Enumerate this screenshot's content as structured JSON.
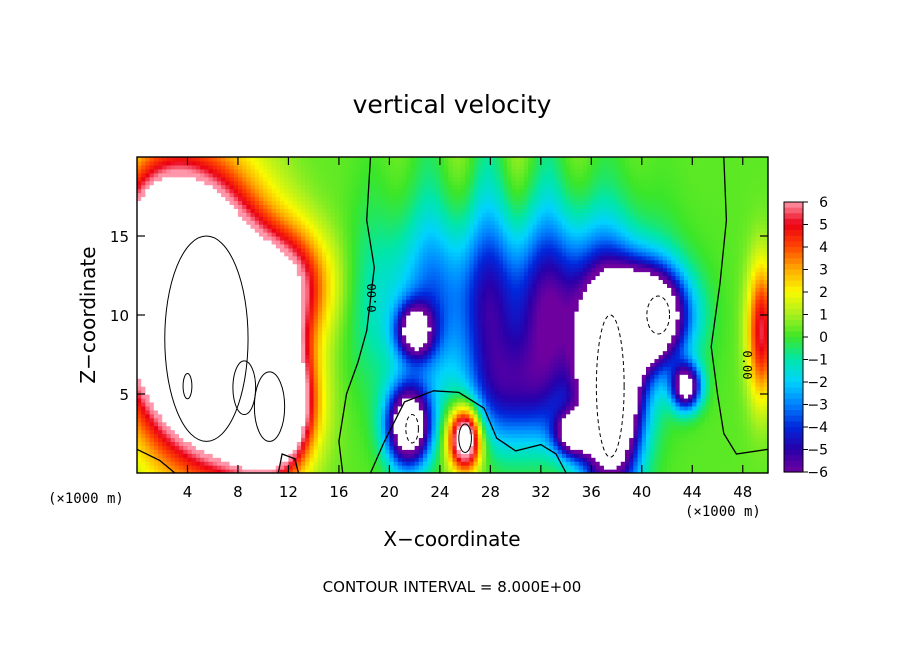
{
  "chart_data": {
    "type": "heatmap",
    "title": "vertical velocity",
    "xlabel": "X−coordinate",
    "ylabel": "Z−coordinate",
    "x_unit_label": "(×1000 m)",
    "x_unit_label_right": "(×1000 m)",
    "xlim": [
      0,
      50
    ],
    "ylim": [
      0,
      20
    ],
    "x_ticks": [
      4,
      8,
      12,
      16,
      20,
      24,
      28,
      32,
      36,
      40,
      44,
      48
    ],
    "y_ticks": [
      5,
      10,
      15
    ],
    "colorbar": {
      "min": -6,
      "max": 6,
      "ticks": [
        "6",
        "5",
        "4",
        "3",
        "2",
        "1",
        "0",
        "−1",
        "−2",
        "−3",
        "−4",
        "−5",
        "−6"
      ]
    },
    "contour_labels": [
      "0.00",
      "0.00"
    ],
    "footer": "CONTOUR INTERVAL = 8.000E+00",
    "features": [
      {
        "kind": "updraft",
        "x": 5,
        "z": 10,
        "sx": 3.6,
        "sz": 5.5,
        "w": 16
      },
      {
        "kind": "updraft",
        "x": 2,
        "z": 13,
        "sx": 2.5,
        "sz": 4,
        "w": 8
      },
      {
        "kind": "updraft",
        "x": 9,
        "z": 6,
        "sx": 2.5,
        "sz": 3.5,
        "w": 11
      },
      {
        "kind": "updraft",
        "x": 11,
        "z": 4,
        "sx": 1.8,
        "sz": 2.5,
        "w": 9
      },
      {
        "kind": "updraft",
        "x": 12,
        "z": 12,
        "sx": 2.5,
        "sz": 2.5,
        "w": 5
      },
      {
        "kind": "updraft",
        "x": 26,
        "z": 2.2,
        "sx": 0.9,
        "sz": 1.4,
        "w": 9
      },
      {
        "kind": "updraft",
        "x": 49.5,
        "z": 9,
        "sx": 0.8,
        "sz": 3,
        "w": 5
      },
      {
        "kind": "downdraft",
        "x": 21.5,
        "z": 3,
        "sx": 1.2,
        "sz": 1.8,
        "w": -10
      },
      {
        "kind": "downdraft",
        "x": 22,
        "z": 9,
        "sx": 1,
        "sz": 1.2,
        "w": -7
      },
      {
        "kind": "downdraft",
        "x": 27,
        "z": 11,
        "sx": 6,
        "sz": 4,
        "w": -4
      },
      {
        "kind": "downdraft",
        "x": 30,
        "z": 5,
        "sx": 2.5,
        "sz": 2.5,
        "w": -4
      },
      {
        "kind": "downdraft",
        "x": 37.5,
        "z": 5,
        "sx": 1.6,
        "sz": 4,
        "w": -14
      },
      {
        "kind": "downdraft",
        "x": 40.5,
        "z": 10,
        "sx": 2,
        "sz": 2,
        "w": -12
      },
      {
        "kind": "downdraft",
        "x": 35.5,
        "z": 10,
        "sx": 4,
        "sz": 4,
        "w": -4
      },
      {
        "kind": "downdraft",
        "x": 43.5,
        "z": 5.5,
        "sx": 0.8,
        "sz": 1,
        "w": -8
      },
      {
        "kind": "downdraft",
        "x": 34.5,
        "z": 2.5,
        "sx": 1,
        "sz": 1,
        "w": -7
      }
    ]
  }
}
